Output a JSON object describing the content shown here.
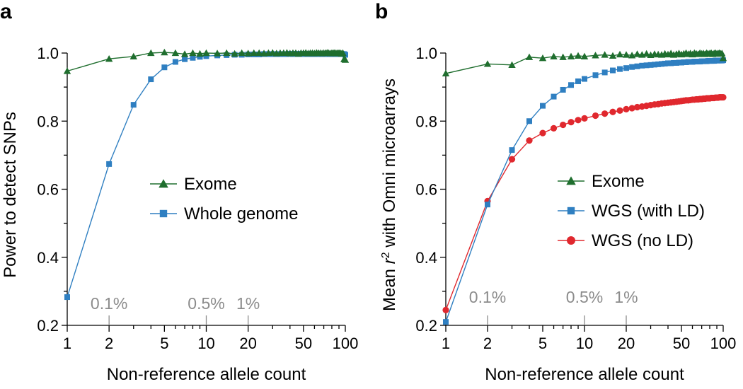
{
  "chart_data": [
    {
      "type": "line",
      "panel": "a",
      "xscale": "log",
      "xlim": [
        1,
        100
      ],
      "ylim": [
        0.2,
        1.0
      ],
      "xlabel": "Non-reference allele count",
      "ylabel": "Power to detect SNPs",
      "xticks": [
        1,
        2,
        5,
        10,
        20,
        50,
        100
      ],
      "xtick_labels": [
        "1",
        "2",
        "5",
        "10",
        "20",
        "50",
        "100"
      ],
      "yticks": [
        0.2,
        0.4,
        0.6,
        0.8,
        1.0
      ],
      "ytick_labels": [
        "0.2",
        "0.4",
        "0.6",
        "0.8",
        "1.0"
      ],
      "frequency_marks": [
        {
          "label": "0.1%",
          "x": 2
        },
        {
          "label": "0.5%",
          "x": 10
        },
        {
          "label": "1%",
          "x": 20
        }
      ],
      "legend": "center-right",
      "series": [
        {
          "name": "Exome",
          "color": "#1f6e2e",
          "marker": "triangle",
          "x": [
            1,
            2,
            3,
            4,
            5,
            6,
            7,
            8,
            9,
            10,
            12,
            14,
            16,
            18,
            20,
            22,
            24,
            26,
            28,
            30,
            32,
            34,
            36,
            38,
            40,
            42,
            44,
            46,
            48,
            50,
            52,
            54,
            56,
            58,
            60,
            62,
            64,
            66,
            68,
            70,
            72,
            74,
            76,
            78,
            80,
            82,
            84,
            86,
            88,
            90,
            92,
            94,
            96,
            98,
            100
          ],
          "y": [
            0.947,
            0.983,
            0.99,
            1.0,
            1.002,
            1.0,
            0.997,
            1.0,
            0.998,
            1.0,
            0.999,
            1.0,
            0.998,
            1.0,
            0.999,
            1.0,
            1.0,
            0.999,
            1.0,
            1.001,
            0.999,
            1.0,
            1.0,
            1.001,
            0.999,
            1.0,
            1.0,
            0.998,
            1.0,
            1.0,
            1.001,
            0.999,
            1.0,
            1.0,
            0.999,
            1.001,
            1.0,
            1.0,
            0.999,
            1.0,
            1.0,
            1.001,
            1.0,
            0.999,
            1.0,
            1.0,
            1.001,
            0.999,
            1.0,
            1.0,
            1.0,
            0.998,
            1.0,
            0.982,
            0.98
          ]
        },
        {
          "name": "Whole genome",
          "color": "#2f7fc1",
          "marker": "square",
          "x": [
            1,
            2,
            3,
            4,
            5,
            6,
            7,
            8,
            9,
            10,
            12,
            14,
            16,
            18,
            20,
            22,
            24,
            26,
            28,
            30,
            32,
            34,
            36,
            38,
            40,
            42,
            44,
            46,
            48,
            50,
            52,
            54,
            56,
            58,
            60,
            62,
            64,
            66,
            68,
            70,
            72,
            74,
            76,
            78,
            80,
            82,
            84,
            86,
            88,
            90,
            92,
            94,
            96,
            98,
            100
          ],
          "y": [
            0.283,
            0.674,
            0.848,
            0.923,
            0.958,
            0.974,
            0.982,
            0.986,
            0.989,
            0.991,
            0.993,
            0.994,
            0.995,
            0.995,
            0.996,
            0.996,
            0.996,
            0.997,
            0.997,
            0.997,
            0.997,
            0.997,
            0.997,
            0.997,
            0.998,
            0.997,
            0.998,
            0.997,
            0.998,
            0.997,
            0.998,
            0.997,
            0.998,
            0.997,
            0.997,
            0.998,
            0.997,
            0.998,
            0.997,
            0.998,
            0.997,
            0.998,
            0.997,
            0.998,
            0.997,
            0.998,
            0.997,
            0.998,
            0.997,
            0.998,
            0.997,
            0.998,
            0.997,
            0.997,
            0.995
          ]
        }
      ]
    },
    {
      "type": "line",
      "panel": "b",
      "xscale": "log",
      "xlim": [
        1,
        100
      ],
      "ylim": [
        0.2,
        1.0
      ],
      "xlabel": "Non-reference allele count",
      "ylabel_prefix": "Mean ",
      "ylabel_var": "r",
      "ylabel_sup": "2",
      "ylabel_suffix": " with Omni microarrays",
      "xticks": [
        1,
        2,
        5,
        10,
        20,
        50,
        100
      ],
      "xtick_labels": [
        "1",
        "2",
        "5",
        "10",
        "20",
        "50",
        "100"
      ],
      "yticks": [
        0.2,
        0.4,
        0.6,
        0.8,
        1.0
      ],
      "ytick_labels": [
        "0.2",
        "0.4",
        "0.6",
        "0.8",
        "1.0"
      ],
      "frequency_marks": [
        {
          "label": "0.1%",
          "x": 2
        },
        {
          "label": "0.5%",
          "x": 10
        },
        {
          "label": "1%",
          "x": 20
        }
      ],
      "legend": "center-right",
      "series": [
        {
          "name": "Exome",
          "color": "#1f6e2e",
          "marker": "triangle",
          "x": [
            1,
            2,
            3,
            4,
            5,
            6,
            7,
            8,
            9,
            10,
            12,
            14,
            16,
            18,
            20,
            22,
            24,
            26,
            28,
            30,
            32,
            34,
            36,
            38,
            40,
            42,
            44,
            46,
            48,
            50,
            52,
            54,
            56,
            58,
            60,
            62,
            64,
            66,
            68,
            70,
            72,
            74,
            76,
            78,
            80,
            82,
            84,
            86,
            88,
            90,
            92,
            94,
            96,
            98,
            100
          ],
          "y": [
            0.94,
            0.968,
            0.965,
            0.988,
            0.985,
            0.99,
            0.988,
            0.99,
            0.992,
            0.99,
            0.993,
            0.995,
            0.992,
            0.996,
            0.995,
            0.993,
            0.997,
            0.995,
            0.998,
            0.994,
            0.997,
            0.996,
            0.995,
            0.998,
            0.996,
            0.999,
            0.995,
            0.997,
            0.999,
            0.996,
            0.998,
            1.0,
            0.997,
            0.999,
            0.996,
            1.0,
            0.998,
            0.997,
            1.0,
            0.998,
            0.999,
            0.997,
            1.0,
            0.998,
            0.999,
            1.0,
            0.997,
            0.999,
            1.0,
            0.998,
            0.999,
            1.0,
            0.998,
            0.999,
            0.985
          ]
        },
        {
          "name": "WGS (with LD)",
          "color": "#2f7fc1",
          "marker": "square",
          "x": [
            1,
            2,
            3,
            4,
            5,
            6,
            7,
            8,
            9,
            10,
            12,
            14,
            16,
            18,
            20,
            22,
            24,
            26,
            28,
            30,
            32,
            34,
            36,
            38,
            40,
            42,
            44,
            46,
            48,
            50,
            52,
            54,
            56,
            58,
            60,
            62,
            64,
            66,
            68,
            70,
            72,
            74,
            76,
            78,
            80,
            82,
            84,
            86,
            88,
            90,
            92,
            94,
            96,
            98,
            100
          ],
          "y": [
            0.21,
            0.555,
            0.715,
            0.8,
            0.845,
            0.872,
            0.892,
            0.906,
            0.917,
            0.924,
            0.935,
            0.943,
            0.949,
            0.953,
            0.956,
            0.959,
            0.961,
            0.963,
            0.964,
            0.965,
            0.966,
            0.967,
            0.968,
            0.969,
            0.97,
            0.97,
            0.971,
            0.971,
            0.972,
            0.972,
            0.973,
            0.973,
            0.974,
            0.974,
            0.974,
            0.975,
            0.975,
            0.975,
            0.975,
            0.976,
            0.976,
            0.976,
            0.976,
            0.977,
            0.977,
            0.977,
            0.977,
            0.977,
            0.978,
            0.978,
            0.978,
            0.978,
            0.978,
            0.978,
            0.979
          ]
        },
        {
          "name": "WGS (no LD)",
          "color": "#e0282e",
          "marker": "circle",
          "x": [
            1,
            2,
            3,
            4,
            5,
            6,
            7,
            8,
            9,
            10,
            12,
            14,
            16,
            18,
            20,
            22,
            24,
            26,
            28,
            30,
            32,
            34,
            36,
            38,
            40,
            42,
            44,
            46,
            48,
            50,
            52,
            54,
            56,
            58,
            60,
            62,
            64,
            66,
            68,
            70,
            72,
            74,
            76,
            78,
            80,
            82,
            84,
            86,
            88,
            90,
            92,
            94,
            96,
            98,
            100
          ],
          "y": [
            0.245,
            0.565,
            0.688,
            0.743,
            0.765,
            0.779,
            0.789,
            0.797,
            0.803,
            0.808,
            0.816,
            0.822,
            0.827,
            0.831,
            0.835,
            0.838,
            0.841,
            0.843,
            0.845,
            0.847,
            0.849,
            0.85,
            0.852,
            0.853,
            0.854,
            0.855,
            0.856,
            0.857,
            0.858,
            0.859,
            0.86,
            0.861,
            0.861,
            0.862,
            0.863,
            0.863,
            0.864,
            0.864,
            0.865,
            0.865,
            0.866,
            0.866,
            0.867,
            0.867,
            0.867,
            0.868,
            0.868,
            0.868,
            0.869,
            0.869,
            0.869,
            0.87,
            0.87,
            0.87,
            0.87
          ]
        }
      ]
    }
  ],
  "panel_letters": [
    "a",
    "b"
  ]
}
